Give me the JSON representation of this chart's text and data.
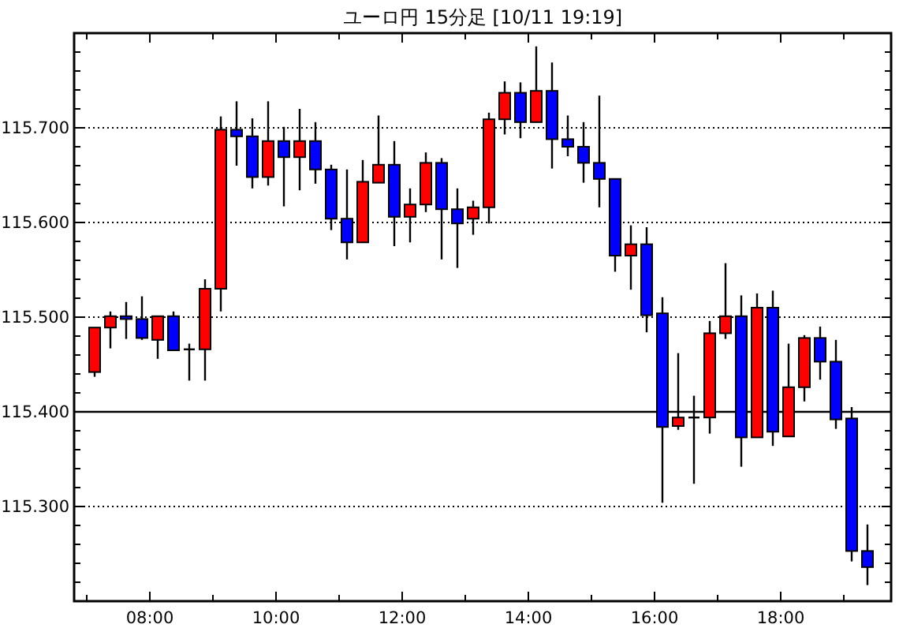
{
  "chart_data": {
    "type": "candlestick",
    "title": "ユーロ円 15分足 [10/11 19:19]",
    "x": [
      7.125,
      7.375,
      7.625,
      7.875,
      8.125,
      8.375,
      8.625,
      8.875,
      9.125,
      9.375,
      9.625,
      9.875,
      10.125,
      10.375,
      10.625,
      10.875,
      11.125,
      11.375,
      11.625,
      11.875,
      12.125,
      12.375,
      12.625,
      12.875,
      13.125,
      13.375,
      13.625,
      13.875,
      14.125,
      14.375,
      14.625,
      14.875,
      15.125,
      15.375,
      15.625,
      15.875,
      16.125,
      16.375,
      16.625,
      16.875,
      17.125,
      17.375,
      17.625,
      17.875,
      18.125,
      18.375,
      18.625,
      18.875,
      19.125,
      19.375
    ],
    "ohlc": [
      [
        115.442,
        115.489,
        115.437,
        115.489
      ],
      [
        115.489,
        115.506,
        115.467,
        115.501
      ],
      [
        115.501,
        115.516,
        115.477,
        115.498
      ],
      [
        115.498,
        115.522,
        115.476,
        115.478
      ],
      [
        115.476,
        115.501,
        115.456,
        115.501
      ],
      [
        115.501,
        115.506,
        115.465,
        115.465
      ],
      [
        115.466,
        115.472,
        115.433,
        115.466
      ],
      [
        115.466,
        115.54,
        115.433,
        115.53
      ],
      [
        115.53,
        115.712,
        115.506,
        115.698
      ],
      [
        115.698,
        115.728,
        115.66,
        115.691
      ],
      [
        115.691,
        115.71,
        115.636,
        115.648
      ],
      [
        115.648,
        115.728,
        115.639,
        115.686
      ],
      [
        115.686,
        115.701,
        115.617,
        115.669
      ],
      [
        115.669,
        115.72,
        115.634,
        115.686
      ],
      [
        115.686,
        115.706,
        115.641,
        115.656
      ],
      [
        115.656,
        115.661,
        115.592,
        115.604
      ],
      [
        115.604,
        115.656,
        115.561,
        115.579
      ],
      [
        115.579,
        115.666,
        115.579,
        115.643
      ],
      [
        115.642,
        115.713,
        115.642,
        115.661
      ],
      [
        115.661,
        115.686,
        115.575,
        115.606
      ],
      [
        115.606,
        115.636,
        115.579,
        115.619
      ],
      [
        115.619,
        115.674,
        115.611,
        115.663
      ],
      [
        115.663,
        115.668,
        115.561,
        115.614
      ],
      [
        115.614,
        115.636,
        115.552,
        115.599
      ],
      [
        115.604,
        115.623,
        115.587,
        115.616
      ],
      [
        115.616,
        115.716,
        115.599,
        115.709
      ],
      [
        115.709,
        115.749,
        115.693,
        115.737
      ],
      [
        115.737,
        115.748,
        115.689,
        115.706
      ],
      [
        115.706,
        115.786,
        115.706,
        115.739
      ],
      [
        115.739,
        115.769,
        115.657,
        115.688
      ],
      [
        115.688,
        115.713,
        115.67,
        115.68
      ],
      [
        115.68,
        115.706,
        115.642,
        115.663
      ],
      [
        115.663,
        115.734,
        115.616,
        115.646
      ],
      [
        115.646,
        115.646,
        115.548,
        115.565
      ],
      [
        115.565,
        115.597,
        115.529,
        115.577
      ],
      [
        115.577,
        115.595,
        115.484,
        115.502
      ],
      [
        115.504,
        115.521,
        115.304,
        115.384
      ],
      [
        115.385,
        115.462,
        115.381,
        115.394
      ],
      [
        115.394,
        115.417,
        115.324,
        115.394
      ],
      [
        115.394,
        115.496,
        115.377,
        115.483
      ],
      [
        115.483,
        115.557,
        115.477,
        115.501
      ],
      [
        115.501,
        115.523,
        115.342,
        115.373
      ],
      [
        115.373,
        115.525,
        115.373,
        115.51
      ],
      [
        115.51,
        115.528,
        115.364,
        115.379
      ],
      [
        115.374,
        115.472,
        115.374,
        115.426
      ],
      [
        115.426,
        115.481,
        115.411,
        115.478
      ],
      [
        115.478,
        115.49,
        115.434,
        115.453
      ],
      [
        115.453,
        115.476,
        115.382,
        115.392
      ],
      [
        115.393,
        115.405,
        115.242,
        115.253
      ],
      [
        115.253,
        115.281,
        115.217,
        115.236
      ]
    ],
    "colors": [
      "#ff0000",
      "#ff0000",
      "#0000ff",
      "#0000ff",
      "#ff0000",
      "#0000ff",
      "#000000",
      "#ff0000",
      "#ff0000",
      "#0000ff",
      "#0000ff",
      "#ff0000",
      "#0000ff",
      "#ff0000",
      "#0000ff",
      "#0000ff",
      "#0000ff",
      "#ff0000",
      "#ff0000",
      "#0000ff",
      "#ff0000",
      "#ff0000",
      "#0000ff",
      "#0000ff",
      "#ff0000",
      "#ff0000",
      "#ff0000",
      "#0000ff",
      "#ff0000",
      "#0000ff",
      "#0000ff",
      "#0000ff",
      "#0000ff",
      "#0000ff",
      "#ff0000",
      "#0000ff",
      "#0000ff",
      "#ff0000",
      "#000000",
      "#ff0000",
      "#ff0000",
      "#0000ff",
      "#ff0000",
      "#0000ff",
      "#ff0000",
      "#ff0000",
      "#0000ff",
      "#0000ff",
      "#0000ff",
      "#0000ff"
    ],
    "xlim": [
      6.8,
      19.75
    ],
    "xticks": [
      {
        "value": 7,
        "label": null
      },
      {
        "value": 8,
        "label": "08:00"
      },
      {
        "value": 9,
        "label": null
      },
      {
        "value": 10,
        "label": "10:00"
      },
      {
        "value": 11,
        "label": null
      },
      {
        "value": 12,
        "label": "12:00"
      },
      {
        "value": 13,
        "label": null
      },
      {
        "value": 14,
        "label": "14:00"
      },
      {
        "value": 15,
        "label": null
      },
      {
        "value": 16,
        "label": "16:00"
      },
      {
        "value": 17,
        "label": null
      },
      {
        "value": 18,
        "label": "18:00"
      },
      {
        "value": 19,
        "label": null
      }
    ],
    "ylim": [
      115.2,
      115.8
    ],
    "yticks": [
      {
        "value": 115.22,
        "label": null
      },
      {
        "value": 115.24,
        "label": null
      },
      {
        "value": 115.26,
        "label": null
      },
      {
        "value": 115.28,
        "label": null
      },
      {
        "value": 115.3,
        "label": "115.300"
      },
      {
        "value": 115.32,
        "label": null
      },
      {
        "value": 115.34,
        "label": null
      },
      {
        "value": 115.36,
        "label": null
      },
      {
        "value": 115.38,
        "label": null
      },
      {
        "value": 115.4,
        "label": "115.400"
      },
      {
        "value": 115.42,
        "label": null
      },
      {
        "value": 115.44,
        "label": null
      },
      {
        "value": 115.46,
        "label": null
      },
      {
        "value": 115.48,
        "label": null
      },
      {
        "value": 115.5,
        "label": "115.500"
      },
      {
        "value": 115.52,
        "label": null
      },
      {
        "value": 115.54,
        "label": null
      },
      {
        "value": 115.56,
        "label": null
      },
      {
        "value": 115.58,
        "label": null
      },
      {
        "value": 115.6,
        "label": "115.600"
      },
      {
        "value": 115.62,
        "label": null
      },
      {
        "value": 115.64,
        "label": null
      },
      {
        "value": 115.66,
        "label": null
      },
      {
        "value": 115.68,
        "label": null
      },
      {
        "value": 115.7,
        "label": "115.700"
      },
      {
        "value": 115.72,
        "label": null
      },
      {
        "value": 115.74,
        "label": null
      },
      {
        "value": 115.76,
        "label": null
      },
      {
        "value": 115.78,
        "label": null
      }
    ],
    "grid": "y",
    "ref_lines": [
      {
        "axis": "y",
        "value": 115.4,
        "color": "#000000",
        "line_style": "solid"
      }
    ]
  }
}
